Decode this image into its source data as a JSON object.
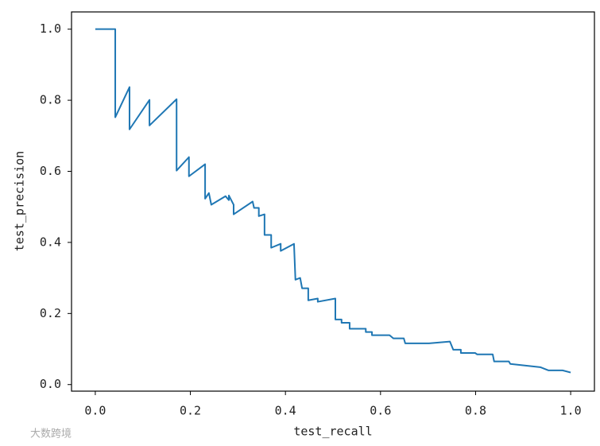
{
  "chart_data": {
    "type": "line",
    "xlabel": "test_recall",
    "ylabel": "test_precision",
    "watermark": "大数跨境",
    "color": "#1f77b4",
    "grid": false,
    "xlim": [
      -0.05,
      1.05
    ],
    "ylim": [
      -0.0185,
      1.0485
    ],
    "xticks": [
      {
        "value": 0,
        "label": "0.0"
      },
      0.2,
      0.4,
      0.6,
      0.8,
      {
        "value": 1,
        "label": "1.0"
      }
    ],
    "yticks": [
      {
        "value": 0,
        "label": "0.0"
      },
      0.2,
      0.4,
      0.6,
      0.8,
      {
        "value": 1,
        "label": "1.0"
      }
    ],
    "x": [
      0,
      0.042,
      0.042,
      0.072,
      0.072,
      0.114,
      0.114,
      0.171,
      0.171,
      0.197,
      0.197,
      0.231,
      0.231,
      0.239,
      0.244,
      0.274,
      0.281,
      0.281,
      0.291,
      0.291,
      0.331,
      0.334,
      0.344,
      0.344,
      0.356,
      0.356,
      0.37,
      0.37,
      0.39,
      0.39,
      0.418,
      0.421,
      0.431,
      0.435,
      0.448,
      0.448,
      0.468,
      0.468,
      0.505,
      0.505,
      0.518,
      0.518,
      0.535,
      0.535,
      0.569,
      0.569,
      0.582,
      0.582,
      0.619,
      0.627,
      0.649,
      0.652,
      0.702,
      0.746,
      0.753,
      0.769,
      0.769,
      0.799,
      0.803,
      0.836,
      0.839,
      0.87,
      0.873,
      0.936,
      0.953,
      0.983,
      1.0
    ],
    "y": [
      1.0,
      1.0,
      0.752,
      0.837,
      0.718,
      0.801,
      0.729,
      0.803,
      0.602,
      0.64,
      0.586,
      0.62,
      0.523,
      0.539,
      0.506,
      0.53,
      0.519,
      0.532,
      0.506,
      0.479,
      0.515,
      0.497,
      0.497,
      0.474,
      0.479,
      0.421,
      0.421,
      0.385,
      0.396,
      0.376,
      0.396,
      0.295,
      0.3,
      0.271,
      0.271,
      0.237,
      0.242,
      0.233,
      0.242,
      0.183,
      0.183,
      0.174,
      0.174,
      0.157,
      0.157,
      0.148,
      0.148,
      0.139,
      0.139,
      0.13,
      0.13,
      0.116,
      0.116,
      0.121,
      0.098,
      0.098,
      0.089,
      0.089,
      0.085,
      0.085,
      0.065,
      0.065,
      0.058,
      0.049,
      0.04,
      0.04,
      0.034
    ]
  }
}
